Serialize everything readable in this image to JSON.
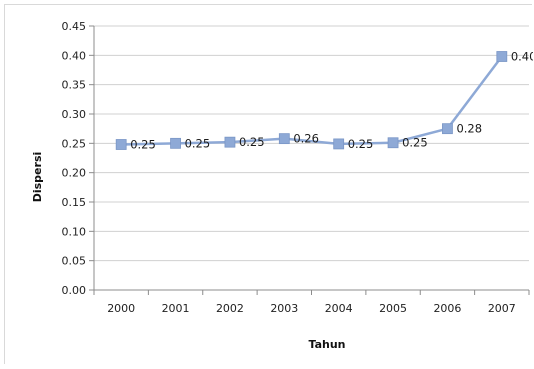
{
  "chart_data": {
    "type": "line",
    "title": "",
    "xlabel": "Tahun",
    "ylabel": "Dispersi",
    "categories": [
      "2000",
      "2001",
      "2002",
      "2003",
      "2004",
      "2005",
      "2006",
      "2007"
    ],
    "series": [
      {
        "values": [
          0.248,
          0.25,
          0.252,
          0.258,
          0.249,
          0.251,
          0.275,
          0.398
        ],
        "labels": [
          "0.25",
          "0.25",
          "0.25",
          "0.26",
          "0.25",
          "0.25",
          "0.28",
          "0.40"
        ],
        "color": "#8ea9d6"
      }
    ],
    "ylim": [
      0,
      0.45
    ],
    "y_ticks": [
      "0.00",
      "0.05",
      "0.10",
      "0.15",
      "0.20",
      "0.25",
      "0.30",
      "0.35",
      "0.40",
      "0.45"
    ],
    "grid": true,
    "gridline_color": "#d0d0d0",
    "legend": "none"
  }
}
